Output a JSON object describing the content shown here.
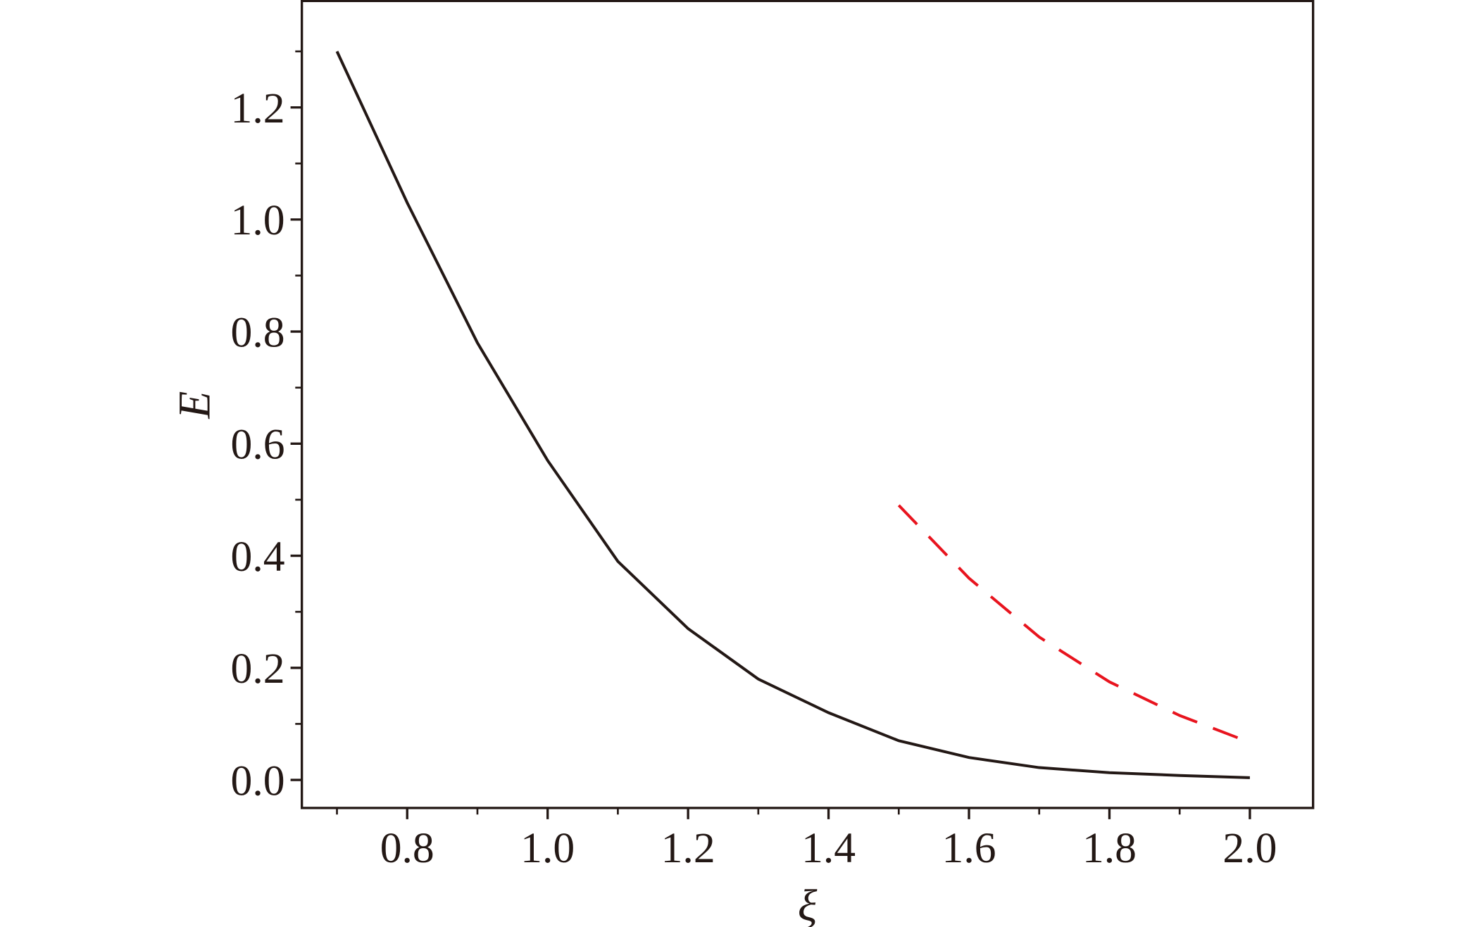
{
  "chart_data": {
    "type": "line",
    "x_label": "ξ",
    "y_label": "E",
    "x": [
      0.7,
      0.8,
      0.9,
      1.0,
      1.1,
      1.2,
      1.3,
      1.4,
      1.5,
      1.6,
      1.7,
      1.8,
      1.9,
      2.0
    ],
    "series": [
      {
        "color": "#231815",
        "dash": "solid",
        "values": [
          1.3,
          1.03,
          0.78,
          0.57,
          0.39,
          0.27,
          0.18,
          0.12,
          0.07,
          0.04,
          0.022,
          0.013,
          0.008,
          0.004
        ]
      },
      {
        "color": "#e8141e",
        "dash": "dashed",
        "values": [
          null,
          null,
          null,
          null,
          null,
          null,
          null,
          null,
          0.49,
          0.36,
          0.255,
          0.175,
          0.115,
          0.067
        ]
      }
    ],
    "xlim": [
      0.65,
      2.09
    ],
    "ylim": [
      -0.05,
      1.39
    ],
    "xticks": [
      0.8,
      {
        "value": 1.0,
        "label": "1.0"
      },
      1.2,
      1.4,
      1.6,
      1.8,
      {
        "value": 2.0,
        "label": "2.0"
      }
    ],
    "yticks": [
      {
        "value": 0.0,
        "label": "0.0"
      },
      0.2,
      0.4,
      0.6,
      0.8,
      {
        "value": 1.0,
        "label": "1.0"
      },
      1.2
    ],
    "xminorticks": [
      0.7,
      0.9,
      1.1,
      1.3,
      1.5,
      1.7,
      1.9
    ],
    "yminorticks": [
      0.1,
      0.3,
      0.5,
      0.7,
      0.9,
      1.1,
      1.3
    ]
  }
}
